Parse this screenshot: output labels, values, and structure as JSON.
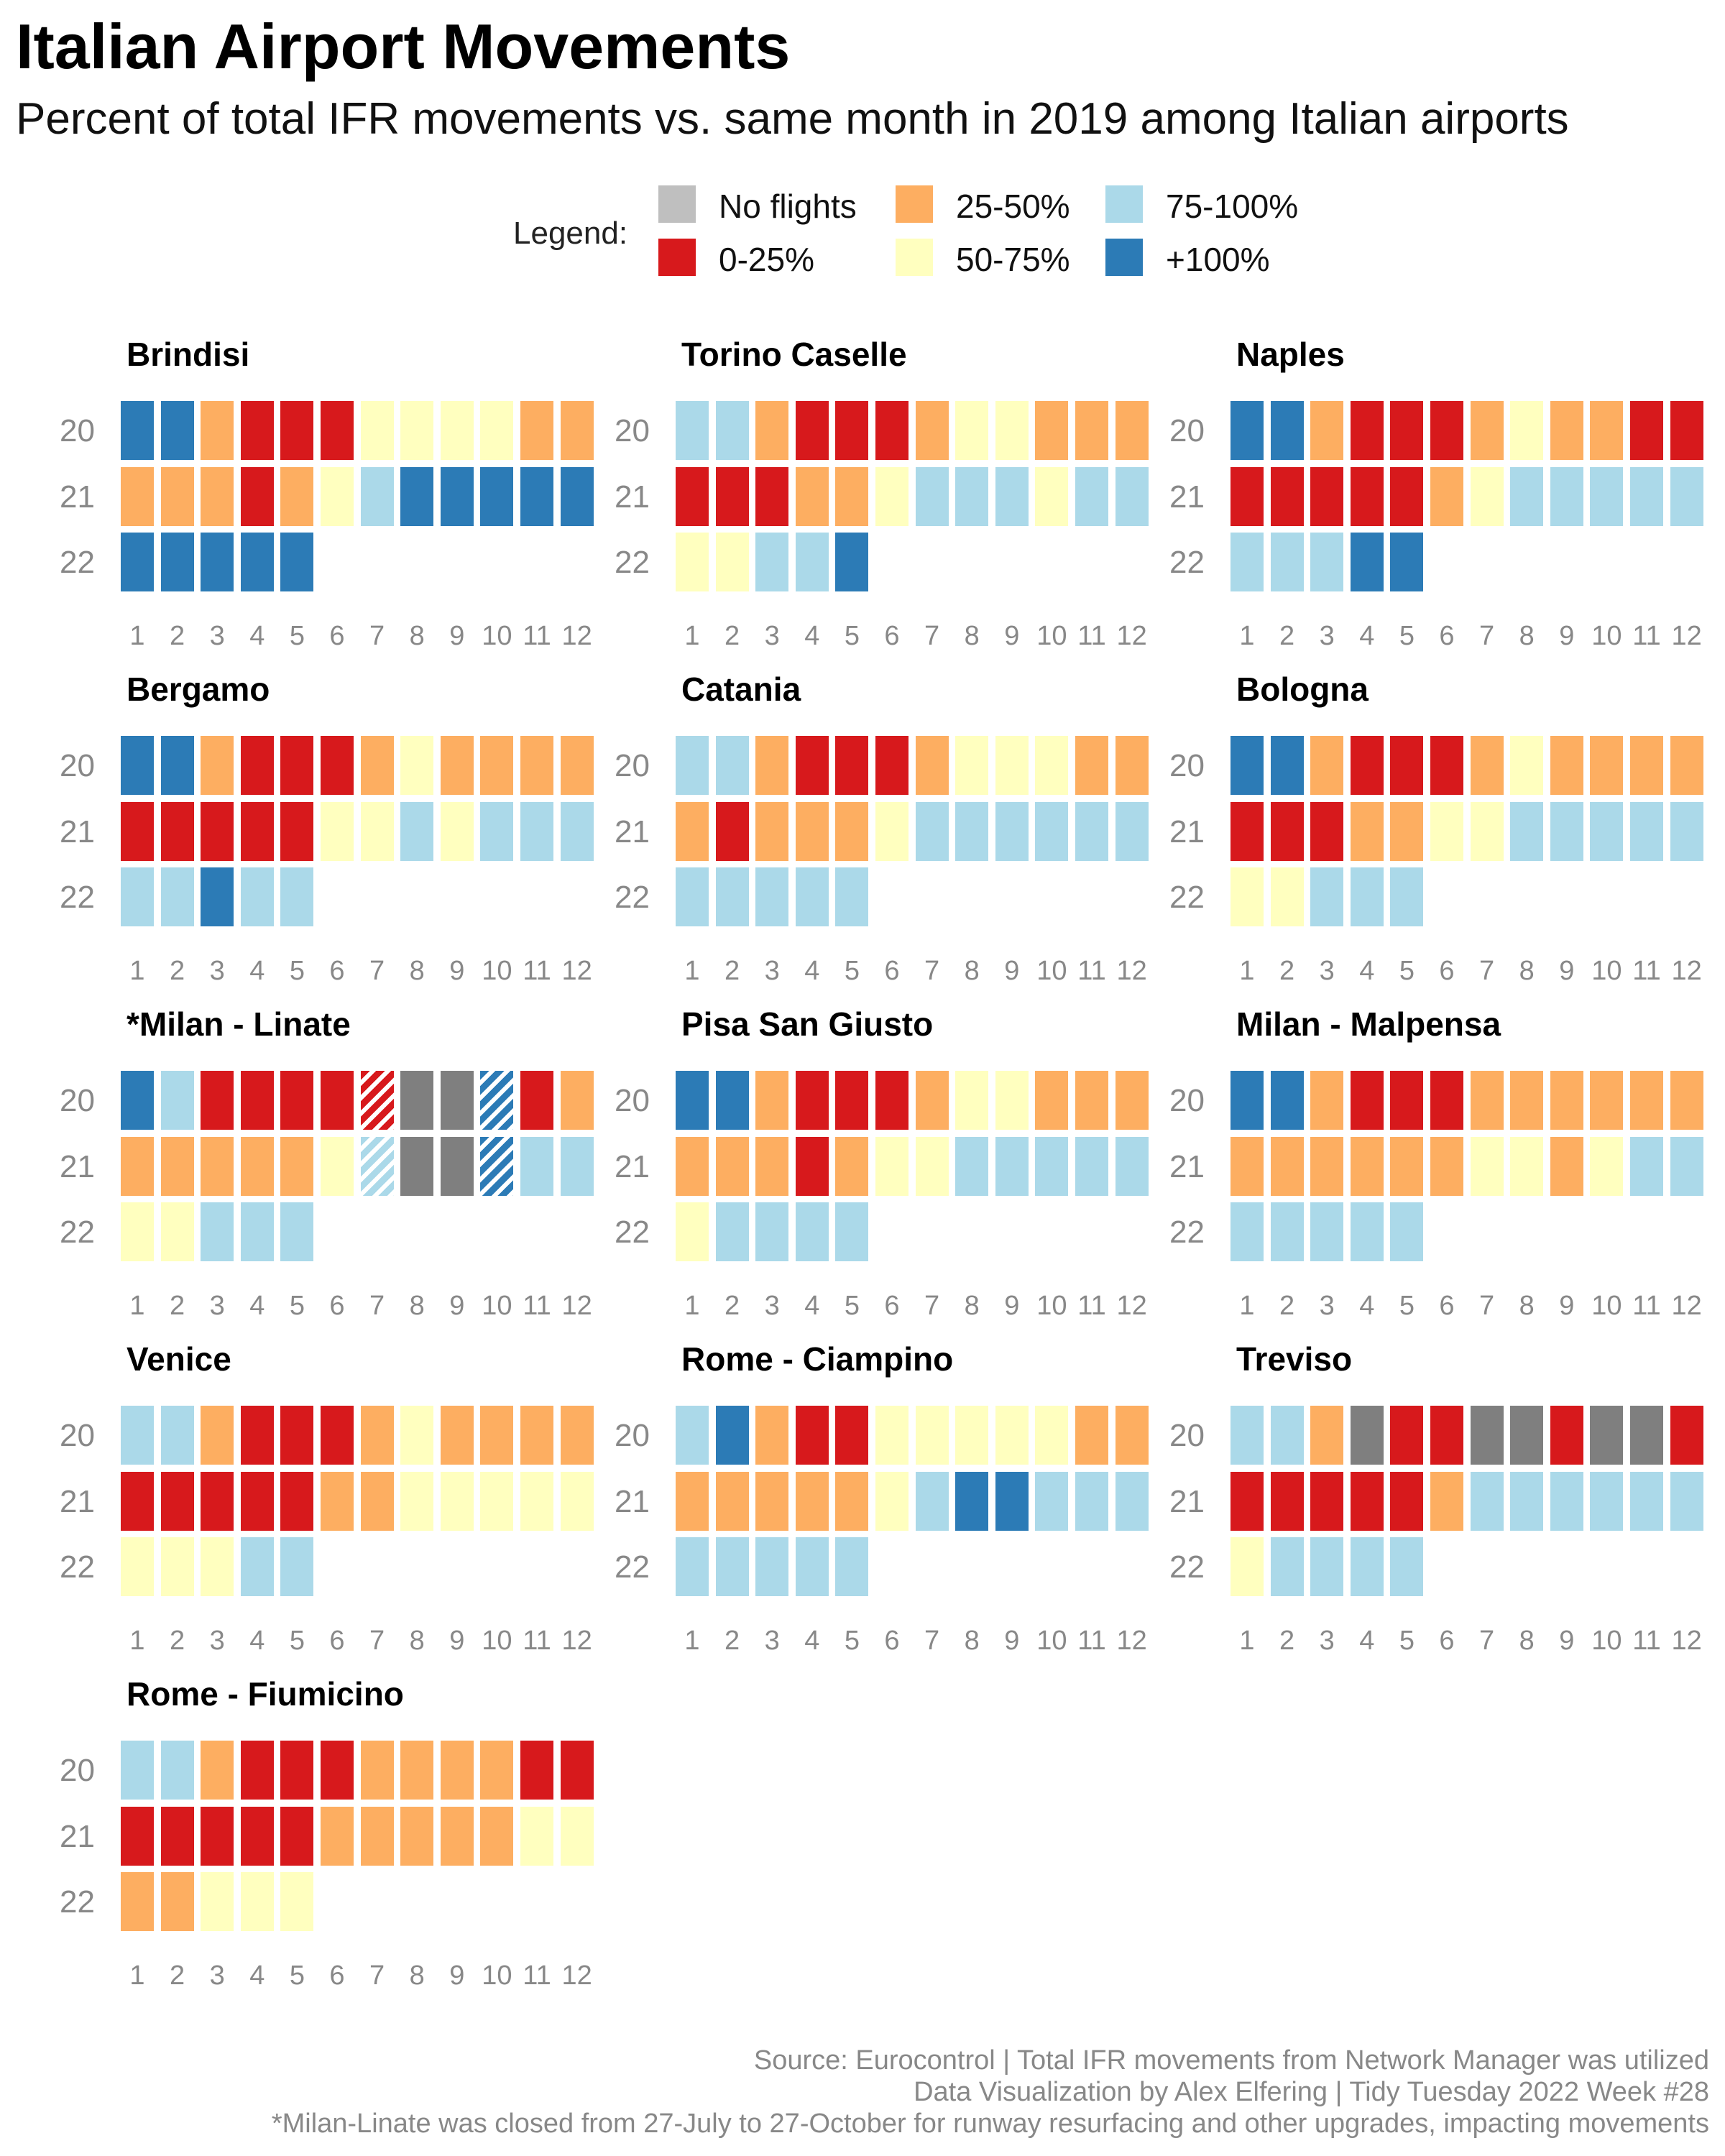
{
  "title": "Italian Airport Movements",
  "subtitle": "Percent of total IFR movements vs. same month in 2019 among Italian airports",
  "legend": {
    "title": "Legend:",
    "items": [
      {
        "key": "N",
        "label": "No flights",
        "color": "#bfbfbf"
      },
      {
        "key": "R",
        "label": "0-25%",
        "color": "#d7191c"
      },
      {
        "key": "O",
        "label": "25-50%",
        "color": "#fdae61"
      },
      {
        "key": "Y",
        "label": "50-75%",
        "color": "#ffffbf"
      },
      {
        "key": "L",
        "label": "75-100%",
        "color": "#abd9e9"
      },
      {
        "key": "B",
        "label": "+100%",
        "color": "#2c7bb6"
      }
    ]
  },
  "cell_colors": {
    "R": "#d7191c",
    "O": "#fdae61",
    "Y": "#ffffbf",
    "L": "#abd9e9",
    "B": "#2c7bb6",
    "G": "#7f7f7f"
  },
  "chart_data": {
    "type": "heatmap",
    "x_label": "",
    "y_label": "",
    "months": [
      "1",
      "2",
      "3",
      "4",
      "5",
      "6",
      "7",
      "8",
      "9",
      "10",
      "11",
      "12"
    ],
    "years": [
      "20",
      "21",
      "22"
    ],
    "category_codes": {
      "R": "0-25%",
      "O": "25-50%",
      "Y": "50-75%",
      "L": "75-100%",
      "B": "+100%",
      "G": "No flights"
    },
    "hatched_note": "Hatched cells mark months affected by the Milan-Linate closure",
    "panels": [
      {
        "name": "Brindisi",
        "rows": [
          [
            "B",
            "B",
            "O",
            "R",
            "R",
            "R",
            "Y",
            "Y",
            "Y",
            "Y",
            "O",
            "O"
          ],
          [
            "O",
            "O",
            "O",
            "R",
            "O",
            "Y",
            "L",
            "B",
            "B",
            "B",
            "B",
            "B"
          ],
          [
            "B",
            "B",
            "B",
            "B",
            "B"
          ]
        ]
      },
      {
        "name": "Torino Caselle",
        "rows": [
          [
            "L",
            "L",
            "O",
            "R",
            "R",
            "R",
            "O",
            "Y",
            "Y",
            "O",
            "O",
            "O"
          ],
          [
            "R",
            "R",
            "R",
            "O",
            "O",
            "Y",
            "L",
            "L",
            "L",
            "Y",
            "L",
            "L"
          ],
          [
            "Y",
            "Y",
            "L",
            "L",
            "B"
          ]
        ]
      },
      {
        "name": "Naples",
        "rows": [
          [
            "B",
            "B",
            "O",
            "R",
            "R",
            "R",
            "O",
            "Y",
            "O",
            "O",
            "R",
            "R"
          ],
          [
            "R",
            "R",
            "R",
            "R",
            "R",
            "O",
            "Y",
            "L",
            "L",
            "L",
            "L",
            "L"
          ],
          [
            "L",
            "L",
            "L",
            "B",
            "B"
          ]
        ]
      },
      {
        "name": "Bergamo",
        "rows": [
          [
            "B",
            "B",
            "O",
            "R",
            "R",
            "R",
            "O",
            "Y",
            "O",
            "O",
            "O",
            "O"
          ],
          [
            "R",
            "R",
            "R",
            "R",
            "R",
            "Y",
            "Y",
            "L",
            "Y",
            "L",
            "L",
            "L"
          ],
          [
            "L",
            "L",
            "B",
            "L",
            "L"
          ]
        ]
      },
      {
        "name": "Catania",
        "rows": [
          [
            "L",
            "L",
            "O",
            "R",
            "R",
            "R",
            "O",
            "Y",
            "Y",
            "Y",
            "O",
            "O"
          ],
          [
            "O",
            "R",
            "O",
            "O",
            "O",
            "Y",
            "L",
            "L",
            "L",
            "L",
            "L",
            "L"
          ],
          [
            "L",
            "L",
            "L",
            "L",
            "L"
          ]
        ]
      },
      {
        "name": "Bologna",
        "rows": [
          [
            "B",
            "B",
            "O",
            "R",
            "R",
            "R",
            "O",
            "Y",
            "O",
            "O",
            "O",
            "O"
          ],
          [
            "R",
            "R",
            "R",
            "O",
            "O",
            "Y",
            "Y",
            "L",
            "L",
            "L",
            "L",
            "L"
          ],
          [
            "Y",
            "Y",
            "L",
            "L",
            "L"
          ]
        ]
      },
      {
        "name": "*Milan - Linate",
        "rows": [
          [
            "B",
            "L",
            "R",
            "R",
            "R",
            "R",
            "R*",
            "G",
            "G",
            "B*",
            "R",
            "O"
          ],
          [
            "O",
            "O",
            "O",
            "O",
            "O",
            "Y",
            "L*",
            "G",
            "G",
            "B*",
            "L",
            "L"
          ],
          [
            "Y",
            "Y",
            "L",
            "L",
            "L"
          ]
        ]
      },
      {
        "name": "Pisa San Giusto",
        "rows": [
          [
            "B",
            "B",
            "O",
            "R",
            "R",
            "R",
            "O",
            "Y",
            "Y",
            "O",
            "O",
            "O"
          ],
          [
            "O",
            "O",
            "O",
            "R",
            "O",
            "Y",
            "Y",
            "L",
            "L",
            "L",
            "L",
            "L"
          ],
          [
            "Y",
            "L",
            "L",
            "L",
            "L"
          ]
        ]
      },
      {
        "name": "Milan - Malpensa",
        "rows": [
          [
            "B",
            "B",
            "O",
            "R",
            "R",
            "R",
            "O",
            "O",
            "O",
            "O",
            "O",
            "O"
          ],
          [
            "O",
            "O",
            "O",
            "O",
            "O",
            "O",
            "Y",
            "Y",
            "O",
            "Y",
            "L",
            "L"
          ],
          [
            "L",
            "L",
            "L",
            "L",
            "L"
          ]
        ]
      },
      {
        "name": "Venice",
        "rows": [
          [
            "L",
            "L",
            "O",
            "R",
            "R",
            "R",
            "O",
            "Y",
            "O",
            "O",
            "O",
            "O"
          ],
          [
            "R",
            "R",
            "R",
            "R",
            "R",
            "O",
            "O",
            "Y",
            "Y",
            "Y",
            "Y",
            "Y"
          ],
          [
            "Y",
            "Y",
            "Y",
            "L",
            "L"
          ]
        ]
      },
      {
        "name": "Rome - Ciampino",
        "rows": [
          [
            "L",
            "B",
            "O",
            "R",
            "R",
            "Y",
            "Y",
            "Y",
            "Y",
            "Y",
            "O",
            "O"
          ],
          [
            "O",
            "O",
            "O",
            "O",
            "O",
            "Y",
            "L",
            "B",
            "B",
            "L",
            "L",
            "L"
          ],
          [
            "L",
            "L",
            "L",
            "L",
            "L"
          ]
        ]
      },
      {
        "name": "Treviso",
        "rows": [
          [
            "L",
            "L",
            "O",
            "G",
            "R",
            "R",
            "G",
            "G",
            "R",
            "G",
            "G",
            "R"
          ],
          [
            "R",
            "R",
            "R",
            "R",
            "R",
            "O",
            "L",
            "L",
            "L",
            "L",
            "L",
            "L"
          ],
          [
            "Y",
            "L",
            "L",
            "L",
            "L"
          ]
        ]
      },
      {
        "name": "Rome - Fiumicino",
        "rows": [
          [
            "L",
            "L",
            "O",
            "R",
            "R",
            "R",
            "O",
            "O",
            "O",
            "O",
            "R",
            "R"
          ],
          [
            "R",
            "R",
            "R",
            "R",
            "R",
            "O",
            "O",
            "O",
            "O",
            "O",
            "Y",
            "Y"
          ],
          [
            "O",
            "O",
            "Y",
            "Y",
            "Y"
          ]
        ]
      }
    ]
  },
  "captions": [
    "Source: Eurocontrol | Total IFR movements from Network Manager was utilized",
    "Data Visualization by Alex Elfering | Tidy Tuesday 2022 Week #28",
    "*Milan-Linate was closed from 27-July to 27-October for runway resurfacing and other upgrades, impacting movements"
  ]
}
